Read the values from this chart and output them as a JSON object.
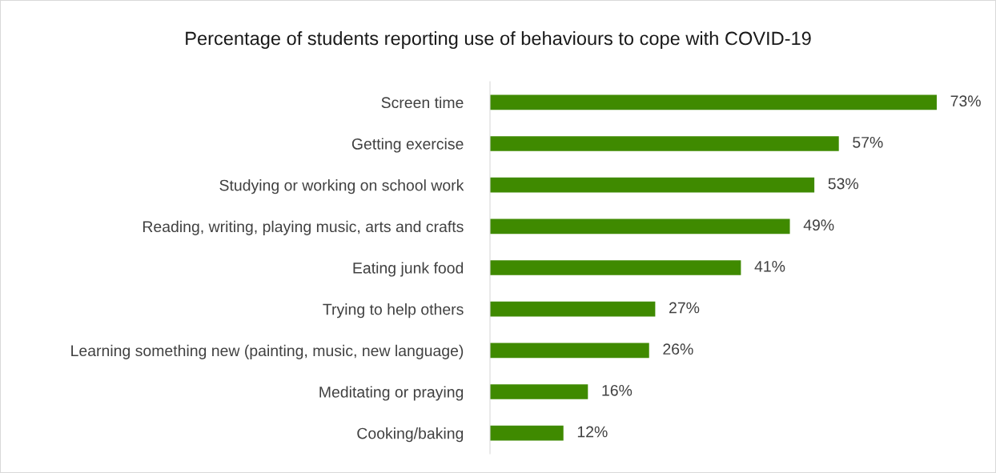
{
  "chart_data": {
    "type": "bar",
    "orientation": "horizontal",
    "title": "Percentage of students reporting use of behaviours to cope with COVID-19",
    "categories": [
      "Screen time",
      "Getting exercise",
      "Studying or working on school work",
      "Reading, writing, playing music, arts and crafts",
      "Eating junk food",
      "Trying to help others",
      "Learning something new (painting, music, new language)",
      "Meditating or praying",
      "Cooking/baking"
    ],
    "values": [
      73,
      57,
      53,
      49,
      41,
      27,
      26,
      16,
      12
    ],
    "value_labels": [
      "73%",
      "57%",
      "53%",
      "49%",
      "41%",
      "27%",
      "26%",
      "16%",
      "12%"
    ],
    "color": "#3f8a00",
    "tick_labels": "y",
    "grid": false,
    "legend": false
  }
}
